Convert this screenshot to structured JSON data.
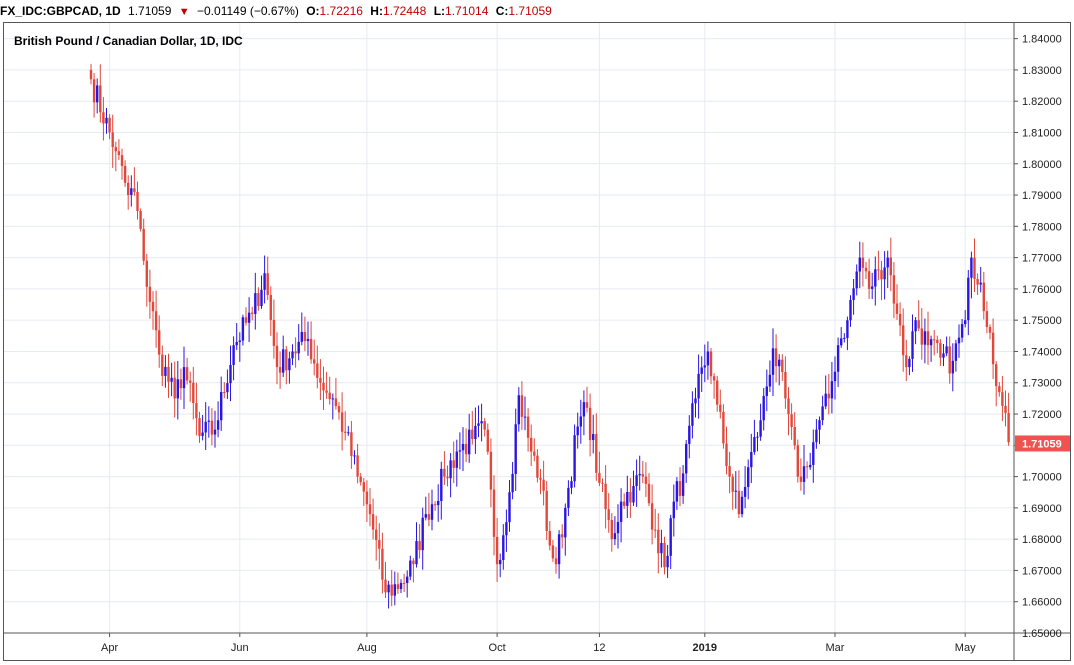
{
  "header": {
    "symbol": "FX_IDC:GBPCAD, 1D",
    "last": "1.71059",
    "direction_icon": "down-triangle",
    "change": "−0.01149 (−0.67%)",
    "open_label": "O:",
    "open": "1.72216",
    "high_label": "H:",
    "high": "1.72448",
    "low_label": "L:",
    "low": "1.71014",
    "close_label": "C:",
    "close": "1.71059"
  },
  "colors": {
    "up": "#2b16e0",
    "down": "#e0483c",
    "grid": "#e6ebf2",
    "price_tag_bg": "#ef5350",
    "text": "#000000"
  },
  "chart_data": {
    "type": "candlestick",
    "title": "British Pound / Canadian Dollar, 1D, IDC",
    "xlabel": "",
    "ylabel": "",
    "ylim": [
      1.65,
      1.845
    ],
    "y_ticks": [
      "1.84000",
      "1.83000",
      "1.82000",
      "1.81000",
      "1.80000",
      "1.79000",
      "1.78000",
      "1.77000",
      "1.76000",
      "1.75000",
      "1.74000",
      "1.73000",
      "1.72000",
      "1.71000",
      "1.70000",
      "1.69000",
      "1.68000",
      "1.67000",
      "1.66000",
      "1.65000"
    ],
    "x_ticks": [
      "Apr",
      "Jun",
      "Aug",
      "Oct",
      "12",
      "2019",
      "Mar",
      "May"
    ],
    "x_tick_bar_index": [
      6,
      48,
      89,
      131,
      164,
      198,
      240,
      282
    ],
    "last_price_label": "1.71059",
    "grid": true,
    "key_points": [
      {
        "bar": 0,
        "close": 1.827
      },
      {
        "bar": 8,
        "close": 1.804
      },
      {
        "bar": 12,
        "close": 1.79
      },
      {
        "bar": 14,
        "close": 1.791
      },
      {
        "bar": 17,
        "close": 1.769
      },
      {
        "bar": 22,
        "close": 1.739
      },
      {
        "bar": 27,
        "close": 1.725
      },
      {
        "bar": 30,
        "close": 1.735
      },
      {
        "bar": 35,
        "close": 1.713
      },
      {
        "bar": 40,
        "close": 1.715
      },
      {
        "bar": 46,
        "close": 1.742
      },
      {
        "bar": 52,
        "close": 1.752
      },
      {
        "bar": 56,
        "close": 1.765
      },
      {
        "bar": 60,
        "close": 1.735
      },
      {
        "bar": 65,
        "close": 1.74
      },
      {
        "bar": 70,
        "close": 1.744
      },
      {
        "bar": 74,
        "close": 1.73
      },
      {
        "bar": 78,
        "close": 1.725
      },
      {
        "bar": 82,
        "close": 1.714
      },
      {
        "bar": 86,
        "close": 1.7
      },
      {
        "bar": 90,
        "close": 1.688
      },
      {
        "bar": 95,
        "close": 1.663
      },
      {
        "bar": 100,
        "close": 1.666
      },
      {
        "bar": 104,
        "close": 1.672
      },
      {
        "bar": 108,
        "close": 1.688
      },
      {
        "bar": 114,
        "close": 1.7
      },
      {
        "bar": 118,
        "close": 1.708
      },
      {
        "bar": 123,
        "close": 1.712
      },
      {
        "bar": 127,
        "close": 1.715
      },
      {
        "bar": 131,
        "close": 1.672
      },
      {
        "bar": 135,
        "close": 1.695
      },
      {
        "bar": 138,
        "close": 1.726
      },
      {
        "bar": 142,
        "close": 1.708
      },
      {
        "bar": 145,
        "close": 1.699
      },
      {
        "bar": 148,
        "close": 1.678
      },
      {
        "bar": 150,
        "close": 1.672
      },
      {
        "bar": 153,
        "close": 1.69
      },
      {
        "bar": 157,
        "close": 1.716
      },
      {
        "bar": 160,
        "close": 1.722
      },
      {
        "bar": 164,
        "close": 1.698
      },
      {
        "bar": 168,
        "close": 1.68
      },
      {
        "bar": 171,
        "close": 1.692
      },
      {
        "bar": 175,
        "close": 1.697
      },
      {
        "bar": 178,
        "close": 1.7
      },
      {
        "bar": 182,
        "close": 1.683
      },
      {
        "bar": 185,
        "close": 1.671
      },
      {
        "bar": 188,
        "close": 1.692
      },
      {
        "bar": 191,
        "close": 1.701
      },
      {
        "bar": 195,
        "close": 1.725
      },
      {
        "bar": 199,
        "close": 1.74
      },
      {
        "bar": 202,
        "close": 1.723
      },
      {
        "bar": 206,
        "close": 1.7
      },
      {
        "bar": 209,
        "close": 1.688
      },
      {
        "bar": 212,
        "close": 1.703
      },
      {
        "bar": 216,
        "close": 1.718
      },
      {
        "bar": 220,
        "close": 1.741
      },
      {
        "bar": 224,
        "close": 1.725
      },
      {
        "bar": 228,
        "close": 1.7
      },
      {
        "bar": 231,
        "close": 1.703
      },
      {
        "bar": 234,
        "close": 1.715
      },
      {
        "bar": 238,
        "close": 1.725
      },
      {
        "bar": 241,
        "close": 1.742
      },
      {
        "bar": 244,
        "close": 1.75
      },
      {
        "bar": 248,
        "close": 1.77
      },
      {
        "bar": 251,
        "close": 1.76
      },
      {
        "bar": 254,
        "close": 1.766
      },
      {
        "bar": 257,
        "close": 1.77
      },
      {
        "bar": 260,
        "close": 1.752
      },
      {
        "bar": 263,
        "close": 1.735
      },
      {
        "bar": 266,
        "close": 1.75
      },
      {
        "bar": 270,
        "close": 1.742
      },
      {
        "bar": 274,
        "close": 1.738
      },
      {
        "bar": 278,
        "close": 1.737
      },
      {
        "bar": 282,
        "close": 1.75
      },
      {
        "bar": 284,
        "close": 1.77
      },
      {
        "bar": 287,
        "close": 1.762
      },
      {
        "bar": 290,
        "close": 1.746
      },
      {
        "bar": 293,
        "close": 1.727
      },
      {
        "bar": 296,
        "close": 1.711
      }
    ]
  }
}
